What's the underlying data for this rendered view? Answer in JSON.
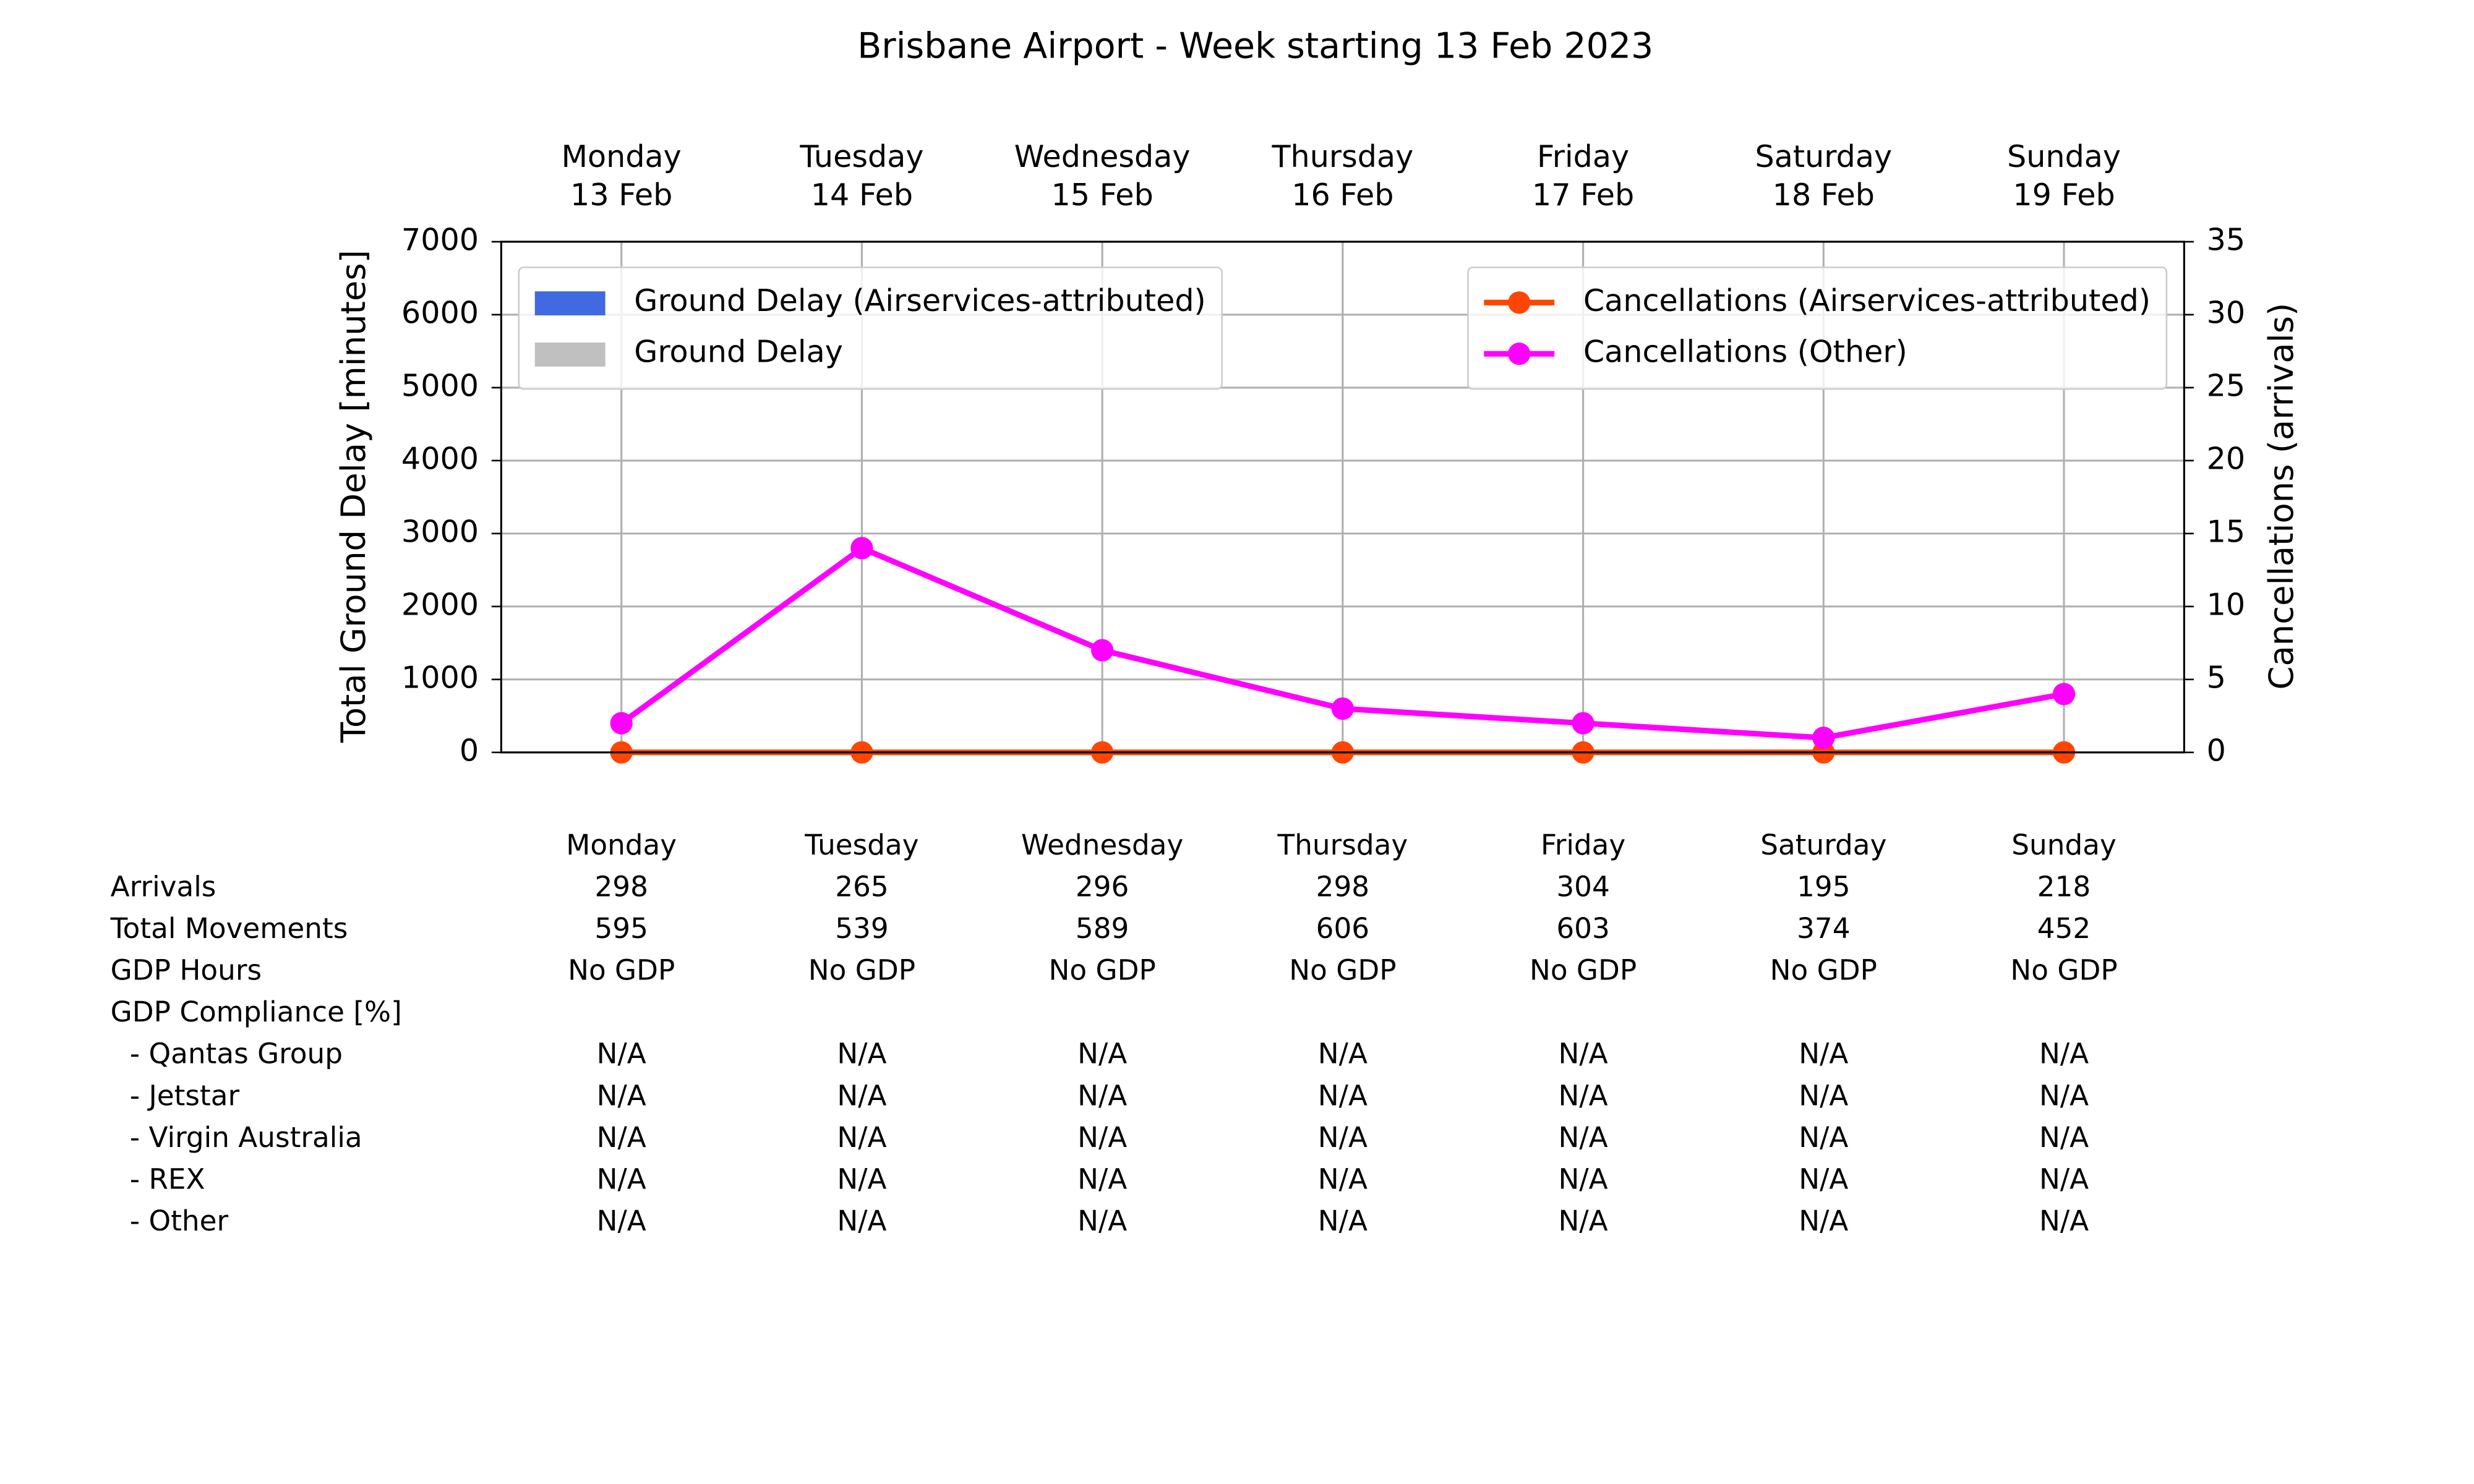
{
  "chart_data": {
    "type": "combo",
    "title": "Brisbane Airport - Week starting 13 Feb 2023",
    "categories": [
      "Monday",
      "Tuesday",
      "Wednesday",
      "Thursday",
      "Friday",
      "Saturday",
      "Sunday"
    ],
    "dates": [
      "13 Feb",
      "14 Feb",
      "15 Feb",
      "16 Feb",
      "17 Feb",
      "18 Feb",
      "19 Feb"
    ],
    "ylabel": "Total Ground Delay [minutes]",
    "y2label": "Cancellations (arrivals)",
    "ylim": [
      0,
      7000
    ],
    "yticks": [
      0,
      1000,
      2000,
      3000,
      4000,
      5000,
      6000,
      7000
    ],
    "y2lim": [
      0,
      35
    ],
    "y2ticks": [
      0,
      5,
      10,
      15,
      20,
      25,
      30,
      35
    ],
    "grid": true,
    "legend": "upper left",
    "legend2": "upper right",
    "series": [
      {
        "name": "Ground Delay (Airservices-attributed)",
        "type": "bar",
        "color": "#4169e1",
        "values": [
          0,
          0,
          0,
          0,
          0,
          0,
          0
        ]
      },
      {
        "name": "Ground Delay",
        "type": "bar",
        "color": "#c0c0c0",
        "values": [
          0,
          0,
          0,
          0,
          0,
          0,
          0
        ]
      },
      {
        "name": "Cancellations (Airservices-attributed)",
        "type": "line",
        "axis": "y2",
        "color": "#ff4500",
        "values": [
          0,
          0,
          0,
          0,
          0,
          0,
          0
        ]
      },
      {
        "name": "Cancellations (Other)",
        "type": "line",
        "axis": "y2",
        "color": "#ff00ff",
        "values": [
          2,
          14,
          7,
          3,
          2,
          1,
          4
        ]
      }
    ]
  },
  "table": {
    "rows": [
      {
        "label": "Arrivals",
        "values": [
          298,
          265,
          296,
          298,
          304,
          195,
          218
        ]
      },
      {
        "label": "Total Movements",
        "values": [
          595,
          539,
          589,
          606,
          603,
          374,
          452
        ]
      },
      {
        "label": "GDP Hours",
        "values": [
          "No GDP",
          "No GDP",
          "No GDP",
          "No GDP",
          "No GDP",
          "No GDP",
          "No GDP"
        ]
      },
      {
        "label": "GDP Compliance [%]"
      },
      {
        "label": "- Qantas Group",
        "values": [
          "N/A",
          "N/A",
          "N/A",
          "N/A",
          "N/A",
          "N/A",
          "N/A"
        ]
      },
      {
        "label": "- Jetstar",
        "values": [
          "N/A",
          "N/A",
          "N/A",
          "N/A",
          "N/A",
          "N/A",
          "N/A"
        ]
      },
      {
        "label": "- Virgin Australia",
        "values": [
          "N/A",
          "N/A",
          "N/A",
          "N/A",
          "N/A",
          "N/A",
          "N/A"
        ]
      },
      {
        "label": "- REX",
        "values": [
          "N/A",
          "N/A",
          "N/A",
          "N/A",
          "N/A",
          "N/A",
          "N/A"
        ]
      },
      {
        "label": "- Other",
        "values": [
          "N/A",
          "N/A",
          "N/A",
          "N/A",
          "N/A",
          "N/A",
          "N/A"
        ]
      }
    ]
  }
}
